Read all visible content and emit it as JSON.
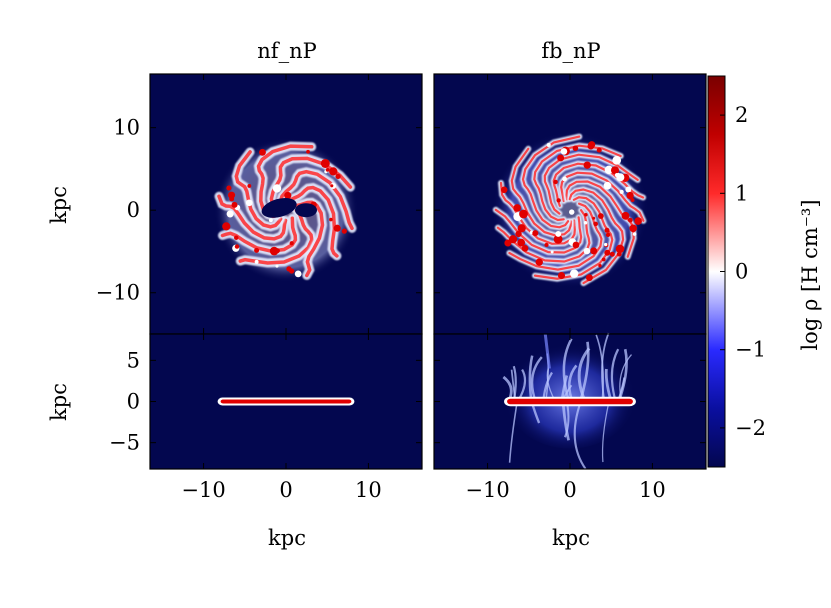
{
  "figure": {
    "panel_titles": [
      "nf_nP",
      "fb_nP"
    ],
    "colorbar_label": "log ρ  [H cm⁻³]"
  },
  "chart_data": {
    "type": "heatmap",
    "panels": [
      {
        "id": "nf_nP_faceon",
        "column_title": "nf_nP",
        "view": "face-on",
        "xlim": [
          -16.5,
          16.5
        ],
        "ylim": [
          -15,
          16.5
        ],
        "xlabel": "",
        "ylabel": "kpc",
        "yticks": [
          -10,
          0,
          10
        ],
        "xticks": [
          -10,
          0,
          10
        ],
        "show_xtick_labels": false,
        "disk": {
          "radius_kpc": 8.3,
          "center": [
            0,
            0
          ]
        }
      },
      {
        "id": "fb_nP_faceon",
        "column_title": "fb_nP",
        "view": "face-on",
        "xlim": [
          -16.5,
          16.5
        ],
        "ylim": [
          -15,
          16.5
        ],
        "xlabel": "",
        "ylabel": "",
        "yticks": [
          -10,
          0,
          10
        ],
        "xticks": [
          -10,
          0,
          10
        ],
        "show_xtick_labels": false,
        "disk": {
          "radius_kpc": 9.0,
          "center": [
            0,
            0
          ]
        }
      },
      {
        "id": "nf_nP_edgeon",
        "column_title": "nf_nP",
        "view": "edge-on",
        "xlim": [
          -16.5,
          16.5
        ],
        "ylim": [
          -8.2,
          8.2
        ],
        "xlabel": "kpc",
        "ylabel": "kpc",
        "yticks": [
          -5,
          0,
          5
        ],
        "xticks": [
          -10,
          0,
          10
        ],
        "show_xtick_labels": true,
        "disk": {
          "radius_kpc": 8.3,
          "thickness_kpc": 0.6
        }
      },
      {
        "id": "fb_nP_edgeon",
        "column_title": "fb_nP",
        "view": "edge-on",
        "xlim": [
          -16.5,
          16.5
        ],
        "ylim": [
          -8.2,
          8.2
        ],
        "xlabel": "kpc",
        "ylabel": "",
        "yticks": [
          -5,
          0,
          5
        ],
        "xticks": [
          -10,
          0,
          10
        ],
        "show_xtick_labels": true,
        "disk": {
          "radius_kpc": 8.0,
          "thickness_kpc": 0.8
        }
      }
    ],
    "colorbar": {
      "label": "log ρ  [H cm⁻³]",
      "range": [
        -2.5,
        2.5
      ],
      "ticks": [
        -2,
        -1,
        0,
        1,
        2
      ],
      "colormap": "seismic",
      "colors": {
        "low": "#03074f",
        "mid_low": "#1a1aff",
        "mid": "#ffffff",
        "mid_high": "#ff2020",
        "high": "#7a0000"
      }
    }
  }
}
